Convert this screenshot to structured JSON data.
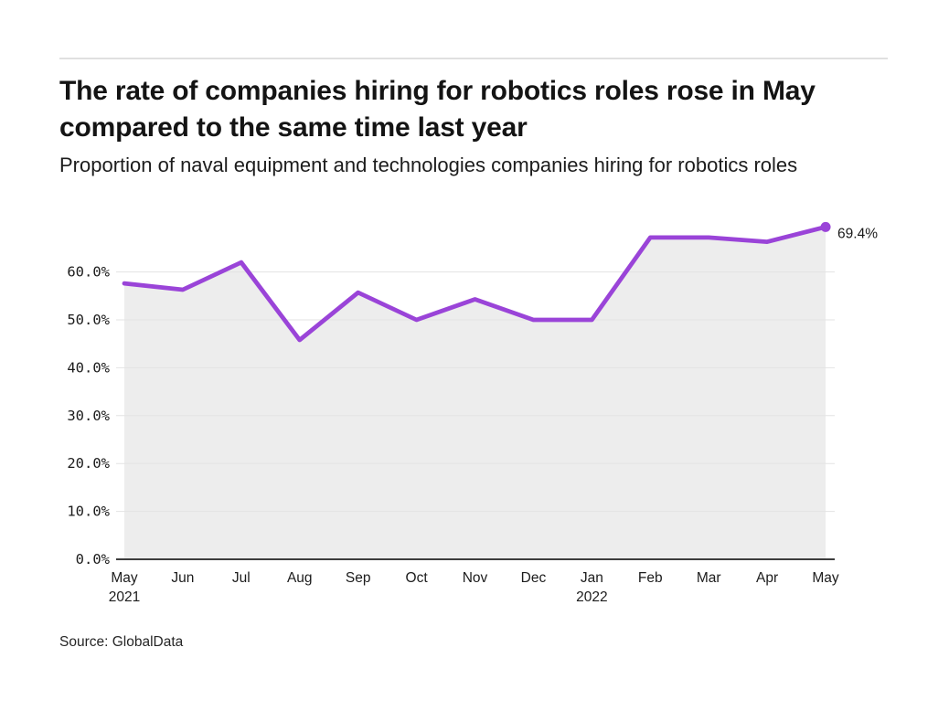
{
  "header": {
    "title": "The rate of companies hiring for robotics roles rose in May compared to the same time last year",
    "subtitle": "Proportion of naval equipment and technologies companies hiring for robotics roles"
  },
  "footer": {
    "source": "Source: GlobalData"
  },
  "colors": {
    "line": "#9a44d8",
    "marker": "#9a44d8",
    "area_fill": "#ededed",
    "gridline": "#e3e3e3",
    "axis_line": "#3d3d3d",
    "axis_text": "#1c1c1c",
    "annotation_text": "#1a1a1a"
  },
  "chart_data": {
    "type": "line",
    "title": "The rate of companies hiring for robotics roles rose in May compared to the same time last year",
    "subtitle": "Proportion of naval equipment and technologies companies hiring for robotics roles",
    "source": "Source: GlobalData",
    "categories": [
      "May",
      "Jun",
      "Jul",
      "Aug",
      "Sep",
      "Oct",
      "Nov",
      "Dec",
      "Jan",
      "Feb",
      "Mar",
      "Apr",
      "May"
    ],
    "category_sublabels": [
      "2021",
      "",
      "",
      "",
      "",
      "",
      "",
      "",
      "2022",
      "",
      "",
      "",
      ""
    ],
    "series": [
      {
        "name": "Proportion of naval equipment and technologies companies hiring for robotics roles",
        "values": [
          57.6,
          56.3,
          62.0,
          45.8,
          55.7,
          50.0,
          54.3,
          50.0,
          50.0,
          67.2,
          67.2,
          66.3,
          69.4
        ]
      }
    ],
    "ylim": [
      0,
      72
    ],
    "yticks": [
      0,
      10,
      20,
      30,
      40,
      50,
      60
    ],
    "ytick_labels": [
      "0.0%",
      "10.0%",
      "20.0%",
      "30.0%",
      "40.0%",
      "50.0%",
      "60.0%"
    ],
    "grid": "horizontal",
    "legend_position": "none",
    "area_fill_under_line": true,
    "annotations": [
      {
        "target_index": 12,
        "text": "69.4%"
      }
    ]
  }
}
